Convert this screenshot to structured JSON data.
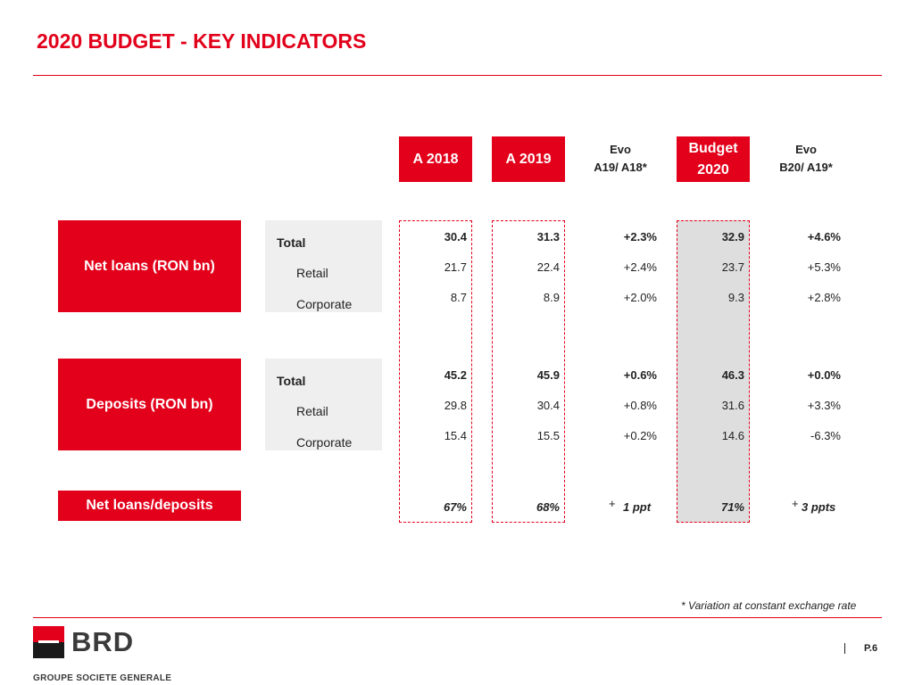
{
  "title": "2020 BUDGET -  KEY INDICATORS",
  "headers": {
    "a2018": "A 2018",
    "a2019": "A 2019",
    "evo1_line1": "Evo",
    "evo1_line2": "A19/ A18*",
    "budget_line1": "Budget",
    "budget_line2": "2020",
    "evo2_line1": "Evo",
    "evo2_line2": "B20/ A19*"
  },
  "sections": {
    "net_loans": {
      "label": "Net loans (RON bn)",
      "rows": [
        {
          "name": "Total",
          "a2018": "30.4",
          "a2019": "31.3",
          "evo1": "+2.3%",
          "budget": "32.9",
          "evo2": "+4.6%"
        },
        {
          "name": "Retail",
          "a2018": "21.7",
          "a2019": "22.4",
          "evo1": "+2.4%",
          "budget": "23.7",
          "evo2": "+5.3%"
        },
        {
          "name": "Corporate",
          "a2018": "8.7",
          "a2019": "8.9",
          "evo1": "+2.0%",
          "budget": "9.3",
          "evo2": "+2.8%"
        }
      ]
    },
    "deposits": {
      "label": "Deposits  (RON bn)",
      "rows": [
        {
          "name": "Total",
          "a2018": "45.2",
          "a2019": "45.9",
          "evo1": "+0.6%",
          "budget": "46.3",
          "evo2": "+0.0%"
        },
        {
          "name": "Retail",
          "a2018": "29.8",
          "a2019": "30.4",
          "evo1": "+0.8%",
          "budget": "31.6",
          "evo2": "+3.3%"
        },
        {
          "name": "Corporate",
          "a2018": "15.4",
          "a2019": "15.5",
          "evo1": "+0.2%",
          "budget": "14.6",
          "evo2": "-6.3%"
        }
      ]
    },
    "ratio": {
      "label": "Net loans/deposits",
      "a2018": "67%",
      "a2019": "68%",
      "evo1_sign": "+",
      "evo1": "1 ppt",
      "budget": "71%",
      "evo2_sign": "+",
      "evo2": "3 ppts"
    }
  },
  "footnote": "* Variation at constant exchange rate",
  "page_number": "P.6",
  "logo": {
    "text": "BRD",
    "tagline": "GROUPE SOCIETE GENERALE"
  },
  "colors": {
    "brand_red": "#e2001a",
    "row_bg": "#efefef",
    "budget_bg": "#dedede"
  }
}
